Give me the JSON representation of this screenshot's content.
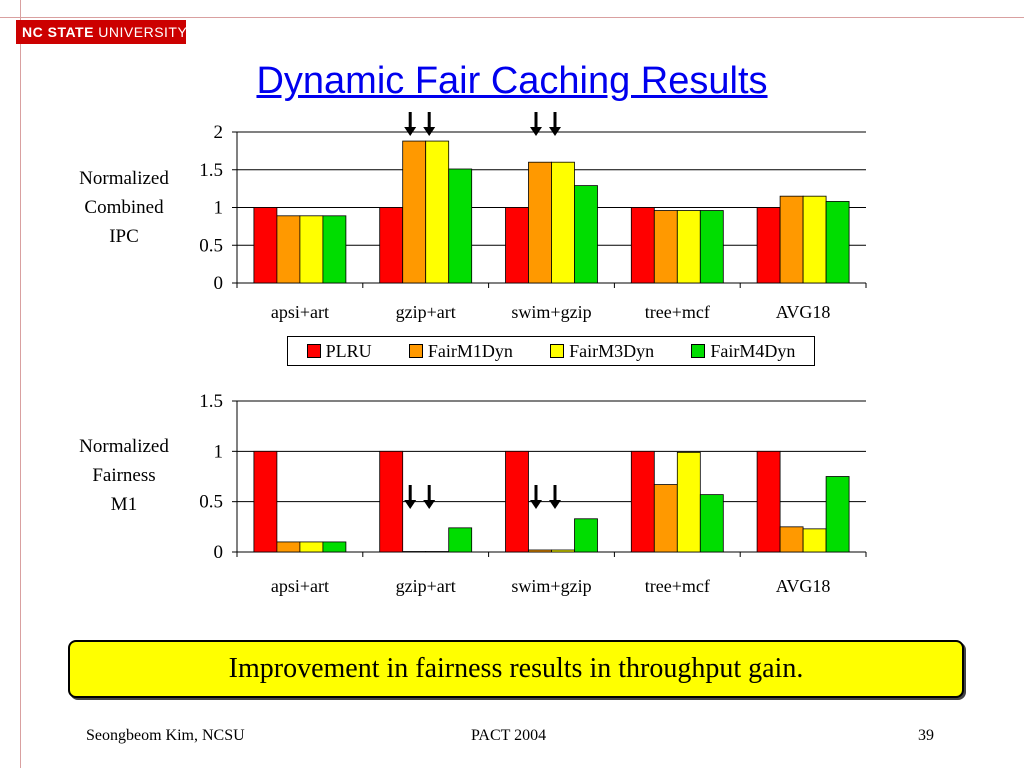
{
  "header": {
    "logo_bold": "NC STATE",
    "logo_rest": " UNIVERSITY"
  },
  "title": "Dynamic Fair Caching Results",
  "charts": {
    "ipc": {
      "ylabel": [
        "Normalized",
        "Combined",
        "IPC"
      ]
    },
    "fairness": {
      "ylabel": [
        "Normalized",
        "Fairness",
        "M1"
      ]
    }
  },
  "legend": [
    {
      "name": "PLRU",
      "color": "#ff0000"
    },
    {
      "name": "FairM1Dyn",
      "color": "#ff9900"
    },
    {
      "name": "FairM3Dyn",
      "color": "#ffff00"
    },
    {
      "name": "FairM4Dyn",
      "color": "#00dd00"
    }
  ],
  "chart_data": [
    {
      "type": "bar",
      "title": "",
      "ylabel": "Normalized Combined IPC",
      "categories": [
        "apsi+art",
        "gzip+art",
        "swim+gzip",
        "tree+mcf",
        "AVG18"
      ],
      "ylim": [
        0,
        2
      ],
      "yticks": [
        "0",
        "0.5",
        "1",
        "1.5",
        "2"
      ],
      "grid": true,
      "legend_position": "bottom",
      "series": [
        {
          "name": "PLRU",
          "values": [
            1.0,
            1.0,
            1.0,
            1.0,
            1.0
          ]
        },
        {
          "name": "FairM1Dyn",
          "values": [
            0.89,
            1.88,
            1.6,
            0.96,
            1.15
          ]
        },
        {
          "name": "FairM3Dyn",
          "values": [
            0.89,
            1.88,
            1.6,
            0.96,
            1.15
          ]
        },
        {
          "name": "FairM4Dyn",
          "values": [
            0.89,
            1.51,
            1.29,
            0.96,
            1.08
          ]
        }
      ],
      "arrow_categories": [
        "gzip+art",
        "swim+gzip"
      ]
    },
    {
      "type": "bar",
      "title": "",
      "ylabel": "Normalized Fairness M1",
      "categories": [
        "apsi+art",
        "gzip+art",
        "swim+gzip",
        "tree+mcf",
        "AVG18"
      ],
      "ylim": [
        0,
        1.5
      ],
      "yticks": [
        "0",
        "0.5",
        "1",
        "1.5"
      ],
      "grid": true,
      "series": [
        {
          "name": "PLRU",
          "values": [
            1.0,
            1.0,
            1.0,
            1.0,
            1.0
          ]
        },
        {
          "name": "FairM1Dyn",
          "values": [
            0.1,
            0.005,
            0.02,
            0.67,
            0.25
          ]
        },
        {
          "name": "FairM3Dyn",
          "values": [
            0.1,
            0.005,
            0.02,
            0.99,
            0.23
          ]
        },
        {
          "name": "FairM4Dyn",
          "values": [
            0.1,
            0.24,
            0.33,
            0.57,
            0.75
          ]
        }
      ],
      "arrow_categories": [
        "gzip+art",
        "swim+gzip"
      ]
    }
  ],
  "callout": "Improvement in fairness results in throughput gain.",
  "footer": {
    "left": "Seongbeom Kim, NCSU",
    "center": "PACT 2004",
    "right": "39"
  }
}
